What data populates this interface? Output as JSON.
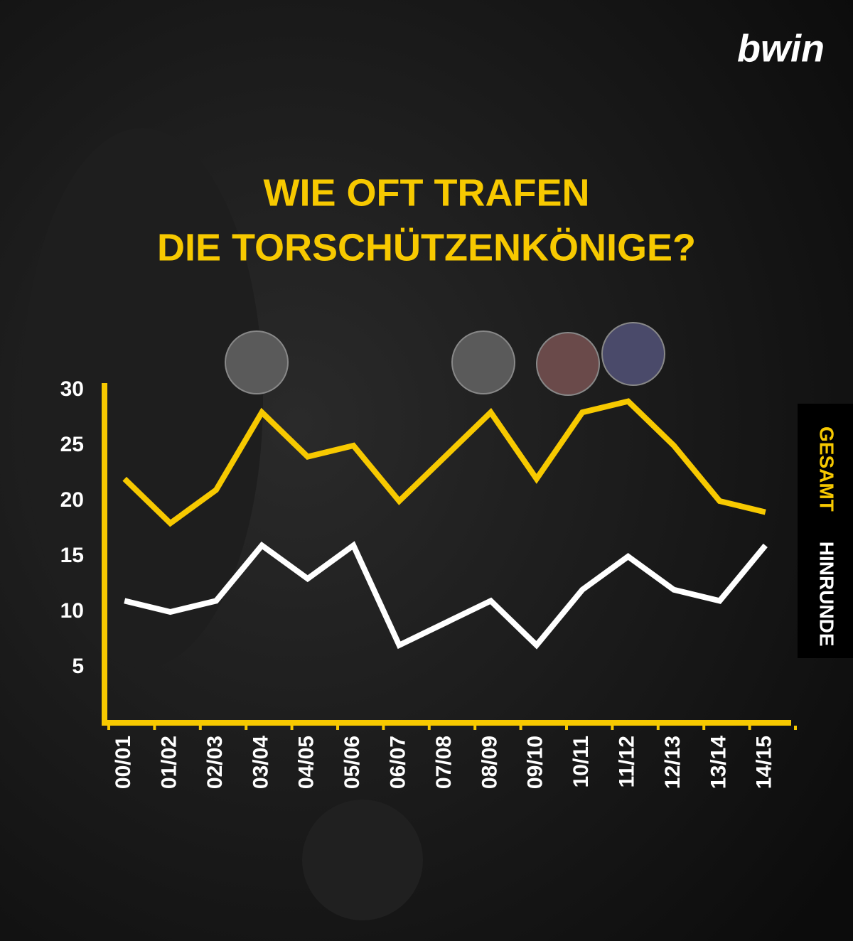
{
  "brand": "bwin",
  "chart_data": {
    "type": "line",
    "title": [
      "WIE OFT TRAFEN",
      "DIE TORSCHÜTZENKÖNIGE?"
    ],
    "categories": [
      "00/01",
      "01/02",
      "02/03",
      "03/04",
      "04/05",
      "05/06",
      "06/07",
      "07/08",
      "08/09",
      "09/10",
      "10/11",
      "11/12",
      "12/13",
      "13/14",
      "14/15"
    ],
    "series": [
      {
        "name": "GESAMT",
        "color": "#f7c900",
        "values": [
          22,
          18,
          21,
          28,
          24,
          25,
          20,
          24,
          28,
          22,
          28,
          29,
          25,
          20,
          19
        ]
      },
      {
        "name": "HINRUNDE",
        "color": "#ffffff",
        "values": [
          11,
          10,
          11,
          16,
          13,
          16,
          7,
          9,
          11,
          7,
          12,
          15,
          12,
          11,
          16
        ]
      }
    ],
    "ylim": [
      0,
      30
    ],
    "yticks": [
      5,
      10,
      15,
      20,
      25,
      30
    ],
    "axis_color": "#f7c900",
    "legend": "right"
  }
}
